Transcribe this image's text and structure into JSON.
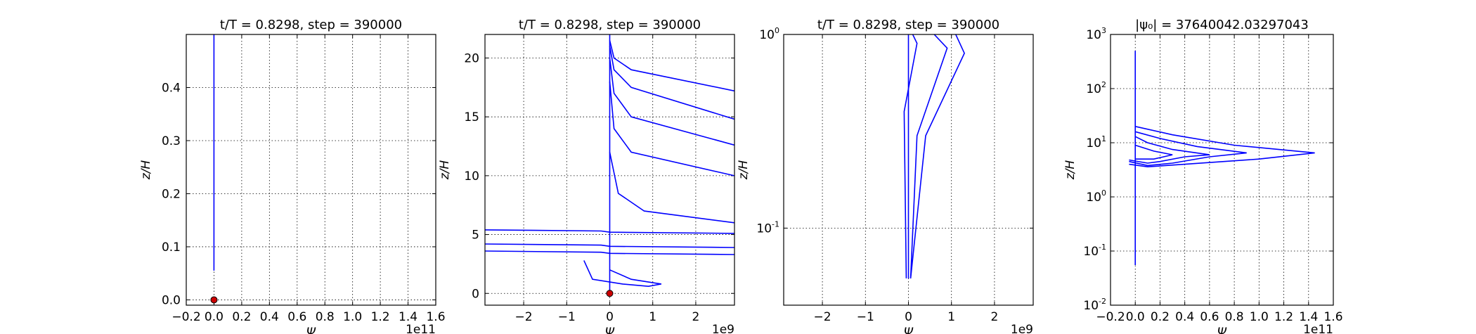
{
  "chart_data": [
    {
      "type": "line",
      "title": "t/T = 0.8298, step = 390000",
      "xlabel": "Ψ",
      "ylabel": "z/H",
      "x_offset_label": "1e11",
      "xlim": [
        -0.2,
        1.6
      ],
      "ylim": [
        -0.01,
        0.5
      ],
      "yscale": "linear",
      "grid": true,
      "xticks": [
        "−0.2",
        "0.0",
        "0.2",
        "0.4",
        "0.6",
        "0.8",
        "1.0",
        "1.2",
        "1.4",
        "1.6"
      ],
      "yticks": [
        "0.0",
        "0.1",
        "0.2",
        "0.3",
        "0.4"
      ],
      "series": [
        {
          "color": "#0000ff",
          "x": [
            0.0,
            0.0
          ],
          "y": [
            0.055,
            0.5
          ]
        }
      ],
      "markers": [
        {
          "x": 0.0,
          "y": 0.0,
          "color": "#cc0000"
        }
      ]
    },
    {
      "type": "line",
      "title": "t/T = 0.8298, step = 390000",
      "xlabel": "Ψ",
      "ylabel": "z/H",
      "x_offset_label": "1e9",
      "xlim": [
        -2.9,
        2.9
      ],
      "ylim": [
        -1.0,
        22.0
      ],
      "yscale": "linear",
      "grid": true,
      "xticks": [
        "−2",
        "−1",
        "0",
        "1",
        "2"
      ],
      "yticks": [
        "0",
        "5",
        "10",
        "15",
        "20"
      ],
      "series": [
        {
          "color": "#0000ff",
          "x": [
            0.0,
            0.0
          ],
          "y": [
            0.0,
            22.0
          ]
        },
        {
          "color": "#0000ff",
          "x": [
            -2.9,
            -0.2,
            0.0,
            2.9
          ],
          "y": [
            5.4,
            5.3,
            5.2,
            5.1
          ]
        },
        {
          "color": "#0000ff",
          "x": [
            -2.9,
            -0.2,
            0.0,
            2.9
          ],
          "y": [
            4.2,
            4.1,
            4.0,
            3.9
          ]
        },
        {
          "color": "#0000ff",
          "x": [
            -2.9,
            -0.2,
            0.0,
            2.9
          ],
          "y": [
            3.6,
            3.5,
            3.4,
            3.3
          ]
        },
        {
          "color": "#0000ff",
          "x": [
            -0.6,
            -0.4,
            0.3,
            0.9,
            1.2,
            0.5,
            0.0
          ],
          "y": [
            2.8,
            1.2,
            0.8,
            0.6,
            0.8,
            1.2,
            2.0
          ]
        },
        {
          "color": "#0000ff",
          "x": [
            0.0,
            0.1,
            0.5,
            2.9
          ],
          "y": [
            21.5,
            20.0,
            19.0,
            17.2
          ]
        },
        {
          "color": "#0000ff",
          "x": [
            0.0,
            0.1,
            0.5,
            2.9
          ],
          "y": [
            21.0,
            19.0,
            17.5,
            14.8
          ]
        },
        {
          "color": "#0000ff",
          "x": [
            0.0,
            0.1,
            0.5,
            2.9
          ],
          "y": [
            20.0,
            17.0,
            15.0,
            12.6
          ]
        },
        {
          "color": "#0000ff",
          "x": [
            0.0,
            0.1,
            0.5,
            2.9
          ],
          "y": [
            18.0,
            14.0,
            12.0,
            10.0
          ]
        },
        {
          "color": "#0000ff",
          "x": [
            0.0,
            0.2,
            0.8,
            2.9
          ],
          "y": [
            12.0,
            8.5,
            7.0,
            6.0
          ]
        }
      ],
      "markers": [
        {
          "x": 0.0,
          "y": 0.0,
          "color": "#cc0000"
        }
      ]
    },
    {
      "type": "line",
      "title": "t/T = 0.8298, step = 390000",
      "xlabel": "Ψ",
      "ylabel": "z/H",
      "x_offset_label": "1e9",
      "xlim": [
        -2.9,
        2.9
      ],
      "ylim": [
        0.04,
        1.0
      ],
      "yscale": "log",
      "grid": true,
      "xticks": [
        "−2",
        "−1",
        "0",
        "1",
        "2"
      ],
      "yticks": [
        "10^-1",
        "10^0"
      ],
      "series": [
        {
          "color": "#0000ff",
          "x": [
            0.0,
            0.0
          ],
          "y": [
            0.055,
            1.0
          ]
        },
        {
          "color": "#0000ff",
          "x": [
            0.05,
            0.4,
            1.3,
            1.1
          ],
          "y": [
            0.055,
            0.3,
            0.8,
            1.0
          ]
        },
        {
          "color": "#0000ff",
          "x": [
            0.05,
            0.2,
            0.9,
            0.6
          ],
          "y": [
            0.055,
            0.3,
            0.85,
            1.0
          ]
        },
        {
          "color": "#0000ff",
          "x": [
            -0.05,
            -0.1,
            0.2,
            0.1
          ],
          "y": [
            0.055,
            0.4,
            0.9,
            1.0
          ]
        }
      ]
    },
    {
      "type": "line",
      "title": "|ψ₀| = 37640042.03297043",
      "xlabel": "Ψ",
      "ylabel": "z/H",
      "x_offset_label": "1e11",
      "xlim": [
        -0.2,
        1.6
      ],
      "ylim": [
        0.01,
        1000
      ],
      "yscale": "log",
      "grid": true,
      "xticks": [
        "−0.2",
        "0.0",
        "0.2",
        "0.4",
        "0.6",
        "0.8",
        "1.0",
        "1.2",
        "1.4",
        "1.6"
      ],
      "yticks": [
        "10^-2",
        "10^-1",
        "10^0",
        "10^1",
        "10^2",
        "10^3"
      ],
      "series": [
        {
          "color": "#0000ff",
          "x": [
            0.0,
            0.0
          ],
          "y": [
            0.055,
            500
          ]
        },
        {
          "color": "#0000ff",
          "x": [
            -0.05,
            0.1,
            0.4,
            1.0,
            1.45,
            0.8,
            0.3,
            0.0
          ],
          "y": [
            4.0,
            3.6,
            4.0,
            5.0,
            6.5,
            9.0,
            14.0,
            20.0
          ]
        },
        {
          "color": "#0000ff",
          "x": [
            -0.05,
            0.1,
            0.3,
            0.6,
            0.9,
            0.5,
            0.2,
            0.0
          ],
          "y": [
            4.5,
            3.8,
            4.2,
            5.5,
            6.5,
            8.5,
            12.0,
            16.0
          ]
        },
        {
          "color": "#0000ff",
          "x": [
            -0.05,
            0.1,
            0.2,
            0.4,
            0.6,
            0.3,
            0.1,
            0.0
          ],
          "y": [
            4.8,
            4.2,
            4.5,
            5.5,
            6.0,
            7.5,
            10.0,
            13.0
          ]
        },
        {
          "color": "#0000ff",
          "x": [
            0.0,
            0.15,
            0.3,
            0.15,
            0.0
          ],
          "y": [
            5.0,
            5.0,
            6.0,
            7.0,
            9.0
          ]
        }
      ]
    }
  ]
}
